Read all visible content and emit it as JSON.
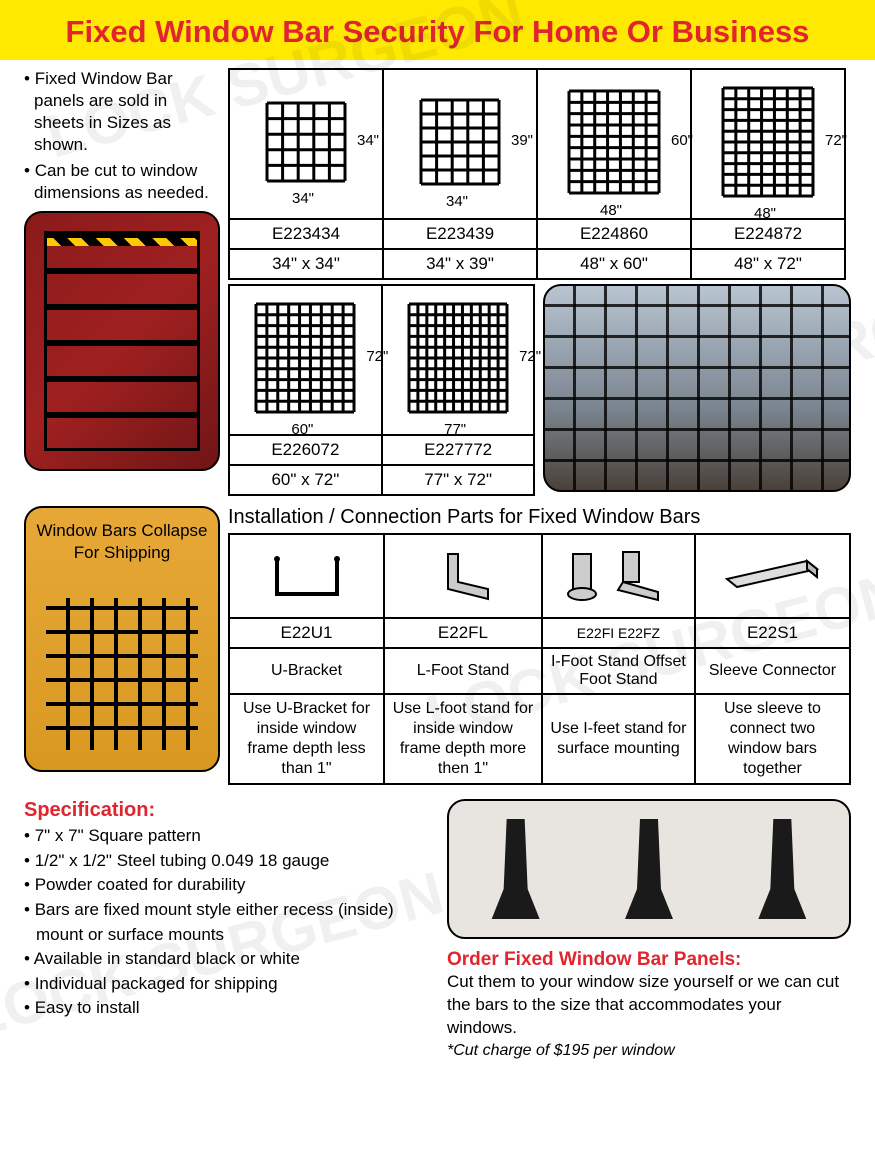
{
  "header": {
    "title": "Fixed Window Bar Security For Home Or Business"
  },
  "intro": {
    "bullets": [
      "Fixed Window Bar panels are sold in sheets in Sizes as shown.",
      "Can be cut to window dimensions as needed."
    ]
  },
  "sizes_row1": [
    {
      "code": "E223434",
      "dim": "34\" x 34\"",
      "w": "34\"",
      "h": "34\"",
      "cols": 5,
      "rows": 5
    },
    {
      "code": "E223439",
      "dim": "34\" x 39\"",
      "w": "34\"",
      "h": "39\"",
      "cols": 5,
      "rows": 6
    },
    {
      "code": "E224860",
      "dim": "48\" x 60\"",
      "w": "48\"",
      "h": "60\"",
      "cols": 7,
      "rows": 9
    },
    {
      "code": "E224872",
      "dim": "48\" x 72\"",
      "w": "48\"",
      "h": "72\"",
      "cols": 7,
      "rows": 10
    }
  ],
  "sizes_row2": [
    {
      "code": "E226072",
      "dim": "60\" x 72\"",
      "w": "60\"",
      "h": "72\"",
      "cols": 9,
      "rows": 10
    },
    {
      "code": "E227772",
      "dim": "77\" x 72\"",
      "w": "77\"",
      "h": "72\"",
      "cols": 11,
      "rows": 10
    }
  ],
  "collapse_label": "Window Bars Collapse For Shipping",
  "parts": {
    "title": "Installation / Connection Parts for Fixed Window Bars",
    "items": [
      {
        "code": "E22U1",
        "name": "U-Bracket",
        "desc": "Use U-Bracket for inside window frame depth less than 1\""
      },
      {
        "code": "E22FL",
        "name": "L-Foot Stand",
        "desc": "Use L-foot stand for inside window frame depth more then 1\""
      },
      {
        "code": "E22FI    E22FZ",
        "name": "I-Foot Stand Offset Foot Stand",
        "desc": "Use I-feet stand for surface mounting"
      },
      {
        "code": "E22S1",
        "name": "Sleeve Connector",
        "desc": "Use sleeve to connect two window bars together"
      }
    ]
  },
  "spec": {
    "title": "Specification:",
    "items": [
      "7\" x 7\" Square pattern",
      "1/2\" x 1/2\" Steel tubing 0.049  18 gauge",
      "Powder coated for durability",
      "Bars are fixed mount style either recess (inside) mount or surface mounts",
      "Available in standard black or white",
      "Individual packaged for shipping",
      "Easy to install"
    ]
  },
  "order": {
    "title": "Order Fixed Window Bar Panels:",
    "text": "Cut them to your window size yourself or we can cut the bars to the size that accommodates your windows.",
    "note": "*Cut charge of $195 per window"
  },
  "watermark": "LOCK SURGEON",
  "colors": {
    "accent_red": "#e0252f",
    "header_bg": "#ffe900",
    "border": "#000000"
  }
}
